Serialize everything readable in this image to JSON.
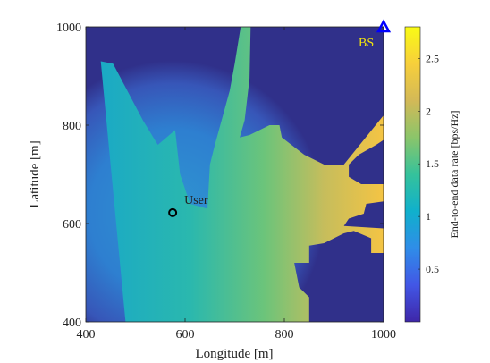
{
  "colors": {
    "background": "#30308a",
    "colormap": [
      "#3e26a8",
      "#4257e6",
      "#2f8de8",
      "#10b0cc",
      "#35c29b",
      "#8bc56a",
      "#d3b957",
      "#f7cf3b",
      "#f9fb15"
    ],
    "user_marker": "#000000",
    "bs_marker": "#0000ff",
    "bs_label": "#f5e60a"
  },
  "chart_data": {
    "type": "heatmap",
    "xlabel": "Longitude [m]",
    "ylabel": "Latitude [m]",
    "xlim": [
      400,
      1000
    ],
    "ylim": [
      400,
      1000
    ],
    "xticks": [
      "400",
      "600",
      "800",
      "1000"
    ],
    "yticks": [
      "400",
      "600",
      "800",
      "1000"
    ],
    "colorbar": {
      "label": "End-to-end data rate [bps/Hz]",
      "range": [
        0,
        2.8
      ],
      "ticks": [
        "0.5",
        "1",
        "1.5",
        "2",
        "2.5"
      ]
    },
    "grid": false,
    "annotations": [
      {
        "label": "User",
        "x": 575,
        "y": 622,
        "marker": "circle"
      },
      {
        "label": "BS",
        "x": 1000,
        "y": 1000,
        "marker": "triangle"
      }
    ],
    "coverage_region_vertices": [
      [
        400,
        400
      ],
      [
        400,
        1000
      ],
      [
        1000,
        1000
      ],
      [
        1000,
        400
      ]
    ],
    "lit_region_vertices": [
      [
        480,
        400
      ],
      [
        430,
        930
      ],
      [
        455,
        925
      ],
      [
        515,
        810
      ],
      [
        545,
        760
      ],
      [
        580,
        790
      ],
      [
        590,
        700
      ],
      [
        610,
        640
      ],
      [
        645,
        630
      ],
      [
        650,
        720
      ],
      [
        660,
        760
      ],
      [
        690,
        870
      ],
      [
        700,
        925
      ],
      [
        712,
        1000
      ],
      [
        732,
        1000
      ],
      [
        730,
        895
      ],
      [
        720,
        810
      ],
      [
        710,
        775
      ],
      [
        730,
        780
      ],
      [
        770,
        800
      ],
      [
        790,
        800
      ],
      [
        795,
        775
      ],
      [
        840,
        740
      ],
      [
        880,
        720
      ],
      [
        920,
        720
      ],
      [
        1000,
        820
      ],
      [
        1000,
        770
      ],
      [
        985,
        760
      ],
      [
        950,
        740
      ],
      [
        930,
        720
      ],
      [
        930,
        695
      ],
      [
        955,
        680
      ],
      [
        1000,
        680
      ],
      [
        1000,
        645
      ],
      [
        965,
        640
      ],
      [
        960,
        620
      ],
      [
        930,
        610
      ],
      [
        920,
        595
      ],
      [
        1000,
        590
      ],
      [
        1000,
        540
      ],
      [
        975,
        540
      ],
      [
        975,
        570
      ],
      [
        940,
        585
      ],
      [
        920,
        580
      ],
      [
        880,
        560
      ],
      [
        850,
        555
      ],
      [
        850,
        520
      ],
      [
        820,
        520
      ],
      [
        830,
        470
      ],
      [
        850,
        450
      ],
      [
        850,
        400
      ]
    ]
  }
}
